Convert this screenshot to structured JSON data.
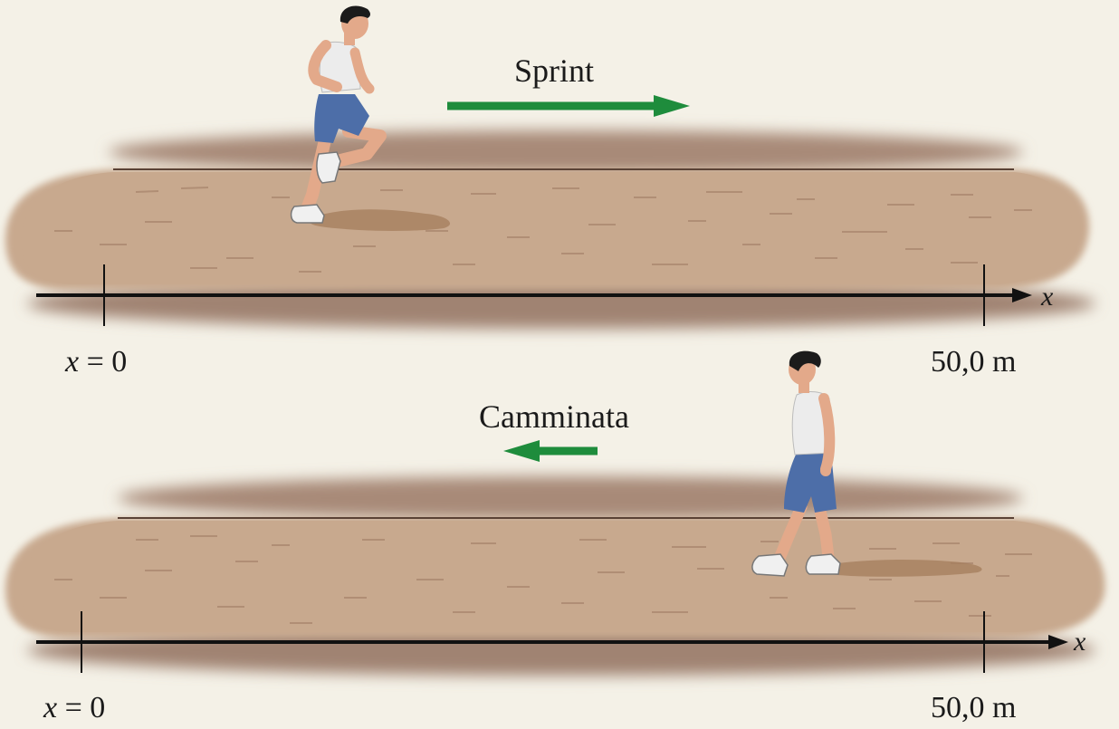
{
  "colors": {
    "background": "#f4f1e7",
    "track": "#c8a98e",
    "track_shadow": "#a88a78",
    "track_rim": "#9c7e6a",
    "axis": "#111111",
    "arrow": "#1e8c3c",
    "shorts": "#4d6ea8",
    "skin": "#e3a98a",
    "hair": "#1b1b1b"
  },
  "panels": [
    {
      "motion_label": "Sprint",
      "direction": "right",
      "origin_label_var": "x",
      "origin_label_rest": " = 0",
      "end_label": "50,0 m",
      "axis_label": "x"
    },
    {
      "motion_label": "Camminata",
      "direction": "left",
      "origin_label_var": "x",
      "origin_label_rest": " = 0",
      "end_label": "50,0 m",
      "axis_label": "x"
    }
  ]
}
